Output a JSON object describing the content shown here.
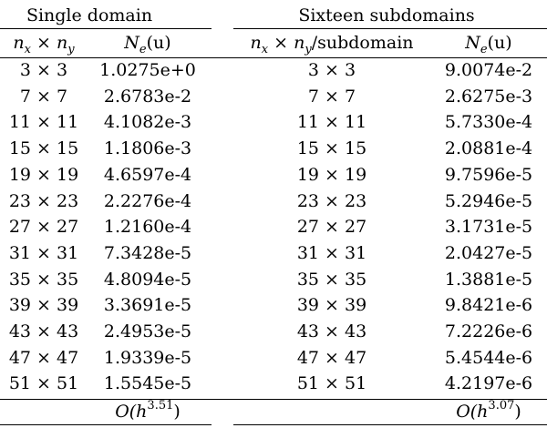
{
  "table": {
    "group_headers": {
      "single": "Single domain",
      "sixteen": "Sixteen subdomains"
    },
    "column_headers": {
      "grid_single": {
        "a": "n",
        "a_sub": "x",
        "op": " × ",
        "b": "n",
        "b_sub": "y",
        "suffix": ""
      },
      "error_single": {
        "a": "N",
        "a_sub": "e",
        "arg": "(u)"
      },
      "grid_sixteen": {
        "a": "n",
        "a_sub": "x",
        "op": " × ",
        "b": "n",
        "b_sub": "y",
        "suffix": "/subdomain"
      },
      "error_sixteen": {
        "a": "N",
        "a_sub": "e",
        "arg": "(u)"
      }
    },
    "rows": [
      {
        "grid": "3 × 3",
        "single": "1.0275e+0",
        "grid2": "3 × 3",
        "sixteen": "9.0074e-2"
      },
      {
        "grid": "7 × 7",
        "single": "2.6783e-2",
        "grid2": "7 × 7",
        "sixteen": "2.6275e-3"
      },
      {
        "grid": "11 × 11",
        "single": "4.1082e-3",
        "grid2": "11 × 11",
        "sixteen": "5.7330e-4"
      },
      {
        "grid": "15 × 15",
        "single": "1.1806e-3",
        "grid2": "15 × 15",
        "sixteen": "2.0881e-4"
      },
      {
        "grid": "19 × 19",
        "single": "4.6597e-4",
        "grid2": "19 × 19",
        "sixteen": "9.7596e-5"
      },
      {
        "grid": "23 × 23",
        "single": "2.2276e-4",
        "grid2": "23 × 23",
        "sixteen": "5.2946e-5"
      },
      {
        "grid": "27 × 27",
        "single": "1.2160e-4",
        "grid2": "27 × 27",
        "sixteen": "3.1731e-5"
      },
      {
        "grid": "31 × 31",
        "single": "7.3428e-5",
        "grid2": "31 × 31",
        "sixteen": "2.0427e-5"
      },
      {
        "grid": "35 × 35",
        "single": "4.8094e-5",
        "grid2": "35 × 35",
        "sixteen": "1.3881e-5"
      },
      {
        "grid": "39 × 39",
        "single": "3.3691e-5",
        "grid2": "39 × 39",
        "sixteen": "9.8421e-6"
      },
      {
        "grid": "43 × 43",
        "single": "2.4953e-5",
        "grid2": "43 × 43",
        "sixteen": "7.2226e-6"
      },
      {
        "grid": "47 × 47",
        "single": "1.9339e-5",
        "grid2": "47 × 47",
        "sixteen": "5.4544e-6"
      },
      {
        "grid": "51 × 51",
        "single": "1.5545e-5",
        "grid2": "51 × 51",
        "sixteen": "4.2197e-6"
      }
    ],
    "footer": {
      "single": {
        "prefix": "O(h",
        "exp": "3.51",
        "suffix": ")"
      },
      "sixteen": {
        "prefix": "O(h",
        "exp": "3.07",
        "suffix": ")"
      }
    }
  }
}
